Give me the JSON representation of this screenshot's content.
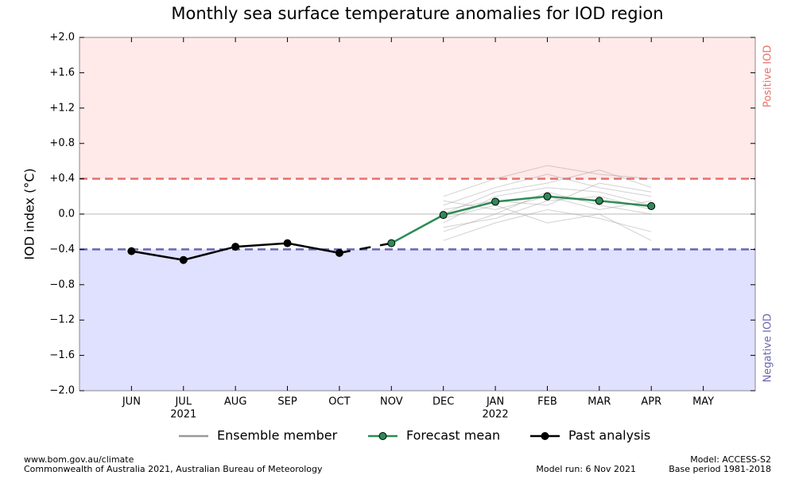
{
  "chart_data": {
    "type": "line",
    "title": "Monthly sea surface temperature anomalies for IOD region",
    "ylabel": "IOD index (°C)",
    "categories": [
      "JUN",
      "JUL",
      "AUG",
      "SEP",
      "OCT",
      "NOV",
      "DEC",
      "JAN",
      "FEB",
      "MAR",
      "APR",
      "MAY"
    ],
    "x_sublabels": [
      null,
      "2021",
      null,
      null,
      null,
      null,
      null,
      "2022",
      null,
      null,
      null,
      null
    ],
    "ylim": [
      -2.0,
      2.0
    ],
    "yticks": [
      {
        "value": 2.0,
        "label": "+2.0"
      },
      {
        "value": 1.6,
        "label": "+1.6"
      },
      {
        "value": 1.2,
        "label": "+1.2"
      },
      {
        "value": 0.8,
        "label": "+0.8"
      },
      {
        "value": 0.4,
        "label": "+0.4"
      },
      {
        "value": 0,
        "label": "0.0"
      },
      {
        "value": -0.4,
        "label": "−0.4"
      },
      {
        "value": -0.8,
        "label": "−0.8"
      },
      {
        "value": -1.2,
        "label": "−1.2"
      },
      {
        "value": -1.6,
        "label": "−1.6"
      },
      {
        "value": -2.0,
        "label": "−2.0"
      }
    ],
    "zero_line": true,
    "thresholds": [
      {
        "value": 0.4,
        "label": "Positive IOD",
        "color": "#e8706a",
        "shade": "#ffe9e9"
      },
      {
        "value": -0.4,
        "label": "Negative IOD",
        "color": "#6b66b0",
        "shade": "#e0e0ff"
      }
    ],
    "ensemble": {
      "name": "Ensemble member",
      "color": "#999999",
      "members": [
        [
          null,
          null,
          null,
          null,
          null,
          null,
          -0.1,
          0.2,
          0.3,
          0.25,
          0.1,
          null
        ],
        [
          null,
          null,
          null,
          null,
          null,
          null,
          0.1,
          0.3,
          0.45,
          0.3,
          0.2,
          null
        ],
        [
          null,
          null,
          null,
          null,
          null,
          null,
          -0.3,
          -0.1,
          0.05,
          -0.05,
          -0.2,
          null
        ],
        [
          null,
          null,
          null,
          null,
          null,
          null,
          0.05,
          0.15,
          0.1,
          0.35,
          0.25,
          null
        ],
        [
          null,
          null,
          null,
          null,
          null,
          null,
          -0.2,
          0.0,
          0.25,
          0.1,
          0.0,
          null
        ],
        [
          null,
          null,
          null,
          null,
          null,
          null,
          0.2,
          0.4,
          0.55,
          0.45,
          0.4,
          null
        ],
        [
          null,
          null,
          null,
          null,
          null,
          null,
          -0.05,
          0.1,
          -0.1,
          0.0,
          -0.3,
          null
        ],
        [
          null,
          null,
          null,
          null,
          null,
          null,
          0.0,
          0.25,
          0.35,
          0.5,
          0.3,
          null
        ],
        [
          null,
          null,
          null,
          null,
          null,
          null,
          -0.15,
          -0.05,
          0.15,
          0.2,
          0.05,
          null
        ],
        [
          null,
          null,
          null,
          null,
          null,
          null,
          0.15,
          0.05,
          0.2,
          0.05,
          0.15,
          null
        ]
      ]
    },
    "series": [
      {
        "name": "Forecast mean",
        "color": "#2e8b57",
        "values": [
          null,
          null,
          null,
          null,
          null,
          -0.33,
          -0.01,
          0.14,
          0.2,
          0.15,
          0.09,
          null
        ]
      },
      {
        "name": "Past analysis",
        "color": "#000000",
        "values": [
          -0.42,
          -0.52,
          -0.37,
          -0.33,
          -0.44,
          null,
          null,
          null,
          null,
          null,
          null,
          null
        ]
      }
    ],
    "footer": {
      "left": [
        "www.bom.gov.au/climate",
        "Commonwealth of Australia 2021, Australian Bureau of Meteorology"
      ],
      "model_run": "Model run: 6 Nov 2021",
      "right": [
        "Model: ACCESS-S2",
        "Base period 1981-2018"
      ]
    }
  }
}
